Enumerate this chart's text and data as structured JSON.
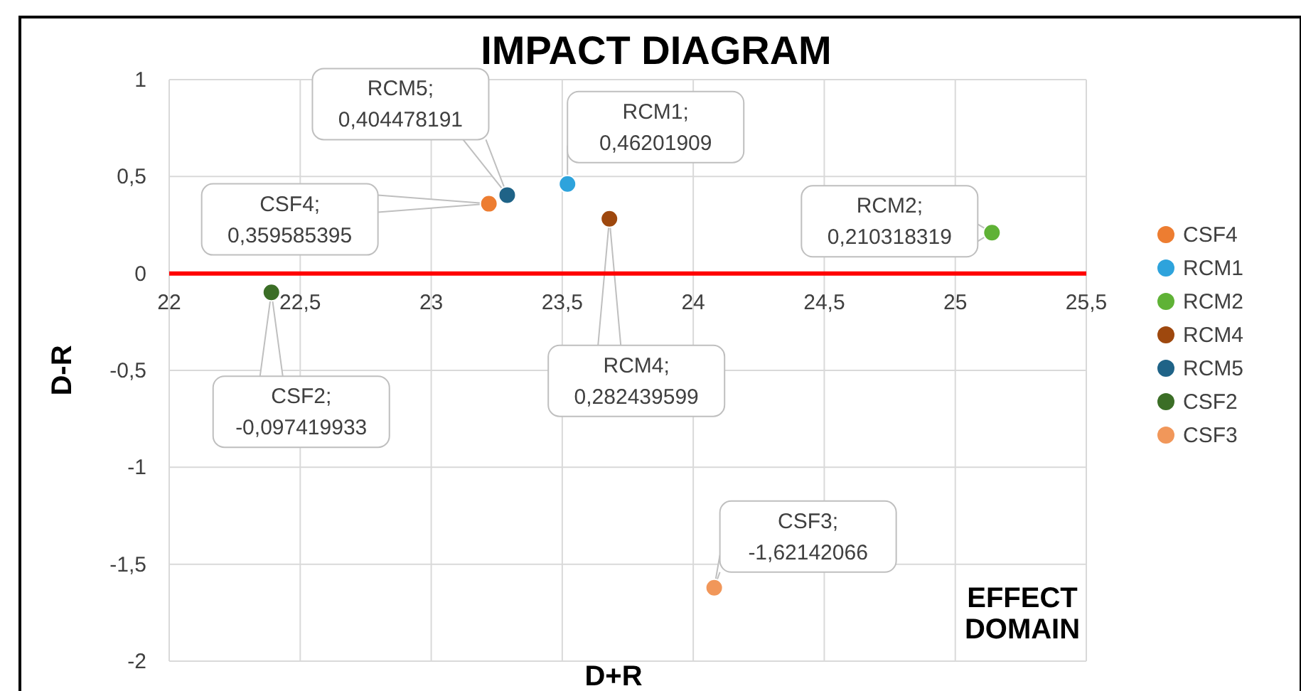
{
  "chart_data": {
    "type": "scatter",
    "title": "IMPACT DIAGRAM",
    "xlabel": "D+R",
    "ylabel": "D-R",
    "xlim": [
      22,
      25.5
    ],
    "xticks": [
      22,
      {
        "value": 22.5,
        "label": "22,5"
      },
      23,
      {
        "value": 23.5,
        "label": "23,5"
      },
      24,
      {
        "value": 24.5,
        "label": "24,5"
      },
      25,
      {
        "value": 25.5,
        "label": "25,5"
      }
    ],
    "ylim": [
      -2,
      1
    ],
    "yticks": [
      -2,
      {
        "value": -1.5,
        "label": "-1,5"
      },
      -1,
      {
        "value": -0.5,
        "label": "-0,5"
      },
      0,
      {
        "value": 0.5,
        "label": "0,5"
      },
      1
    ],
    "grid": true,
    "legend": "right",
    "marker": "circle",
    "annotations": [
      "EFFECT DOMAIN"
    ],
    "series": [
      {
        "name": "CSF4",
        "color": "#ed7d31",
        "x": [
          23.22
        ],
        "values": [
          0.359585395
        ],
        "value_labels": [
          "CSF4; 0,359585395"
        ]
      },
      {
        "name": "RCM1",
        "color": "#2ea3dc",
        "x": [
          23.52
        ],
        "values": [
          0.46201909
        ],
        "value_labels": [
          "RCM1; 0,46201909"
        ]
      },
      {
        "name": "RCM2",
        "color": "#5fb236",
        "x": [
          25.14
        ],
        "values": [
          0.210318319
        ],
        "value_labels": [
          "RCM2; 0,210318319"
        ]
      },
      {
        "name": "RCM4",
        "color": "#9e480e",
        "x": [
          23.68
        ],
        "values": [
          0.282439599
        ],
        "value_labels": [
          "RCM4; 0,282439599"
        ]
      },
      {
        "name": "RCM5",
        "color": "#1f6387",
        "x": [
          23.29
        ],
        "values": [
          0.404478191
        ],
        "value_labels": [
          "RCM5; 0,404478191"
        ]
      },
      {
        "name": "CSF2",
        "color": "#3b6e26",
        "x": [
          22.39
        ],
        "values": [
          -0.097419933
        ],
        "value_labels": [
          "CSF2; -0,097419933"
        ]
      },
      {
        "name": "CSF3",
        "color": "#f1975a",
        "x": [
          24.08
        ],
        "values": [
          -1.62142066
        ],
        "value_labels": [
          "CSF3; -1,62142066"
        ]
      }
    ]
  }
}
